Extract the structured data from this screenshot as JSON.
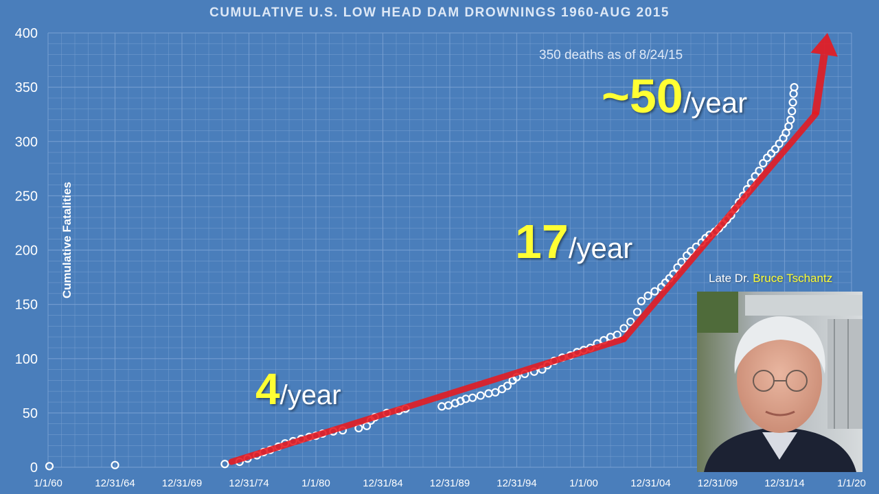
{
  "chart_data": {
    "type": "scatter",
    "title": "CUMULATIVE U.S. LOW HEAD DAM DROWNINGS 1960-AUG 2015",
    "ylabel": "Cumulative Fatalities",
    "xlabel": "",
    "ylim": [
      0,
      400
    ],
    "yticks": [
      0,
      50,
      100,
      150,
      200,
      250,
      300,
      350,
      400
    ],
    "xlim": [
      1960.0,
      2020.0
    ],
    "xticks": [
      {
        "label": "1/1/60",
        "value": 1960.0
      },
      {
        "label": "12/31/64",
        "value": 1965.0
      },
      {
        "label": "12/31/69",
        "value": 1970.0
      },
      {
        "label": "12/31/74",
        "value": 1975.0
      },
      {
        "label": "1/1/80",
        "value": 1980.0
      },
      {
        "label": "12/31/84",
        "value": 1985.0
      },
      {
        "label": "12/31/89",
        "value": 1990.0
      },
      {
        "label": "12/31/94",
        "value": 1995.0
      },
      {
        "label": "1/1/00",
        "value": 2000.0
      },
      {
        "label": "12/31/04",
        "value": 2005.0
      },
      {
        "label": "12/31/09",
        "value": 2010.0
      },
      {
        "label": "12/31/14",
        "value": 2015.0
      },
      {
        "label": "1/1/20",
        "value": 2020.0
      }
    ],
    "grid": true,
    "points": [
      [
        1960.1,
        1
      ],
      [
        1965.0,
        2
      ],
      [
        1973.2,
        3
      ],
      [
        1974.3,
        5
      ],
      [
        1974.9,
        8
      ],
      [
        1975.6,
        11
      ],
      [
        1976.1,
        14
      ],
      [
        1976.6,
        16
      ],
      [
        1977.2,
        19
      ],
      [
        1977.7,
        22
      ],
      [
        1978.3,
        24
      ],
      [
        1978.9,
        26
      ],
      [
        1979.5,
        28
      ],
      [
        1980.0,
        29
      ],
      [
        1980.5,
        31
      ],
      [
        1981.3,
        33
      ],
      [
        1982.0,
        34
      ],
      [
        1983.2,
        36
      ],
      [
        1983.8,
        38
      ],
      [
        1984.1,
        43
      ],
      [
        1984.4,
        46
      ],
      [
        1985.3,
        50
      ],
      [
        1986.2,
        52
      ],
      [
        1986.7,
        54
      ],
      [
        1989.4,
        56
      ],
      [
        1989.9,
        57
      ],
      [
        1990.4,
        59
      ],
      [
        1990.8,
        61
      ],
      [
        1991.2,
        63
      ],
      [
        1991.7,
        64
      ],
      [
        1992.3,
        66
      ],
      [
        1992.9,
        68
      ],
      [
        1993.4,
        69
      ],
      [
        1993.9,
        72
      ],
      [
        1994.3,
        75
      ],
      [
        1994.7,
        80
      ],
      [
        1995.0,
        83
      ],
      [
        1995.6,
        86
      ],
      [
        1996.3,
        88
      ],
      [
        1996.9,
        90
      ],
      [
        1997.3,
        94
      ],
      [
        1997.8,
        98
      ],
      [
        1998.4,
        101
      ],
      [
        1999.0,
        103
      ],
      [
        1999.5,
        106
      ],
      [
        2000.0,
        108
      ],
      [
        2000.5,
        110
      ],
      [
        2001.0,
        114
      ],
      [
        2001.5,
        117
      ],
      [
        2002.0,
        120
      ],
      [
        2002.5,
        122
      ],
      [
        2003.0,
        128
      ],
      [
        2003.5,
        134
      ],
      [
        2004.0,
        143
      ],
      [
        2004.3,
        153
      ],
      [
        2004.8,
        158
      ],
      [
        2005.3,
        162
      ],
      [
        2005.8,
        166
      ],
      [
        2006.1,
        170
      ],
      [
        2006.4,
        174
      ],
      [
        2006.7,
        178
      ],
      [
        2007.0,
        184
      ],
      [
        2007.3,
        189
      ],
      [
        2007.7,
        195
      ],
      [
        2008.0,
        199
      ],
      [
        2008.4,
        203
      ],
      [
        2008.8,
        207
      ],
      [
        2009.1,
        211
      ],
      [
        2009.4,
        214
      ],
      [
        2009.8,
        217
      ],
      [
        2010.1,
        220
      ],
      [
        2010.4,
        224
      ],
      [
        2010.7,
        228
      ],
      [
        2011.0,
        232
      ],
      [
        2011.3,
        238
      ],
      [
        2011.6,
        244
      ],
      [
        2011.9,
        250
      ],
      [
        2012.2,
        256
      ],
      [
        2012.5,
        262
      ],
      [
        2012.8,
        268
      ],
      [
        2013.1,
        273
      ],
      [
        2013.4,
        280
      ],
      [
        2013.7,
        285
      ],
      [
        2014.0,
        289
      ],
      [
        2014.3,
        293
      ],
      [
        2014.6,
        298
      ],
      [
        2014.9,
        303
      ],
      [
        2015.1,
        308
      ],
      [
        2015.3,
        314
      ],
      [
        2015.45,
        320
      ],
      [
        2015.55,
        328
      ],
      [
        2015.62,
        336
      ],
      [
        2015.67,
        344
      ],
      [
        2015.72,
        350
      ]
    ],
    "trend_segments": [
      {
        "label_num": "4",
        "label_unit": "/year",
        "from": [
          1973.7,
          5
        ],
        "to": [
          2003.0,
          118
        ]
      },
      {
        "label_num": "17",
        "label_unit": "/year",
        "from": [
          2003.0,
          118
        ],
        "to": [
          2017.3,
          325
        ]
      },
      {
        "label_num": "~50",
        "label_unit": "/year",
        "from": [
          2017.3,
          325
        ],
        "to": [
          2018.2,
          400
        ]
      }
    ],
    "annotation": "350 deaths as of 8/24/15",
    "point_color": "#ffffff",
    "trend_color": "#e8191f"
  },
  "photo": {
    "caption_prefix": "Late Dr.",
    "caption_name": "Bruce Tschantz"
  }
}
